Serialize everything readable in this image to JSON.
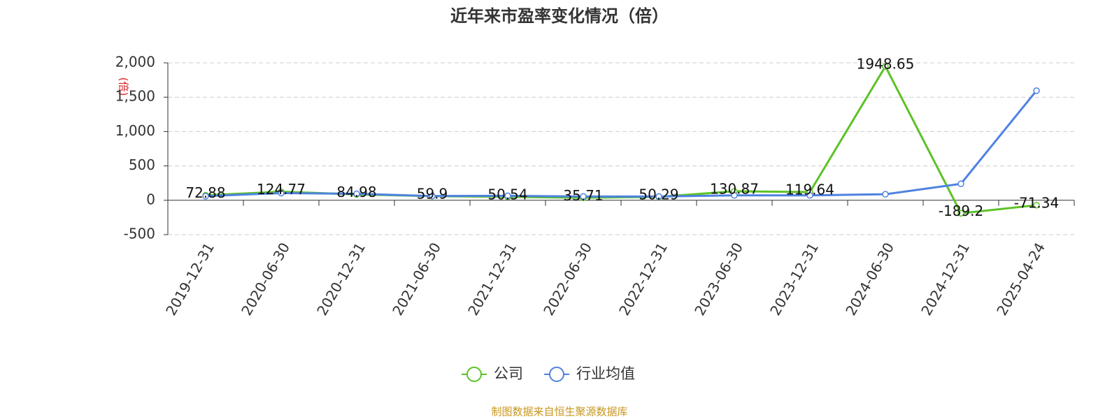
{
  "chart_data": {
    "type": "line",
    "title": "近年来市盈率变化情况（倍）",
    "y_label": "(倍)",
    "categories": [
      "2019-12-31",
      "2020-06-30",
      "2020-12-31",
      "2021-06-30",
      "2021-12-31",
      "2022-06-30",
      "2022-12-31",
      "2023-06-30",
      "2023-12-31",
      "2024-06-30",
      "2024-12-31",
      "2025-04-24"
    ],
    "series": [
      {
        "name": "公司",
        "color": "#5cc227",
        "values": [
          72.88,
          124.77,
          84.98,
          59.9,
          50.54,
          35.71,
          50.29,
          130.87,
          119.64,
          1948.65,
          -189.2,
          -71.34
        ]
      },
      {
        "name": "行业均值",
        "color": "#4f82e0",
        "values": [
          60,
          105,
          95,
          62,
          65,
          55,
          55,
          72,
          72,
          88,
          240,
          1595
        ]
      }
    ],
    "ylim": [
      -500,
      2000
    ],
    "yticks": [
      -500,
      0,
      500,
      {
        "value": 1000,
        "label": "1,000"
      },
      {
        "value": 1500,
        "label": "1,500"
      },
      {
        "value": 2000,
        "label": "2,000"
      }
    ],
    "grid": true,
    "source": "制图数据来自恒生聚源数据库"
  }
}
